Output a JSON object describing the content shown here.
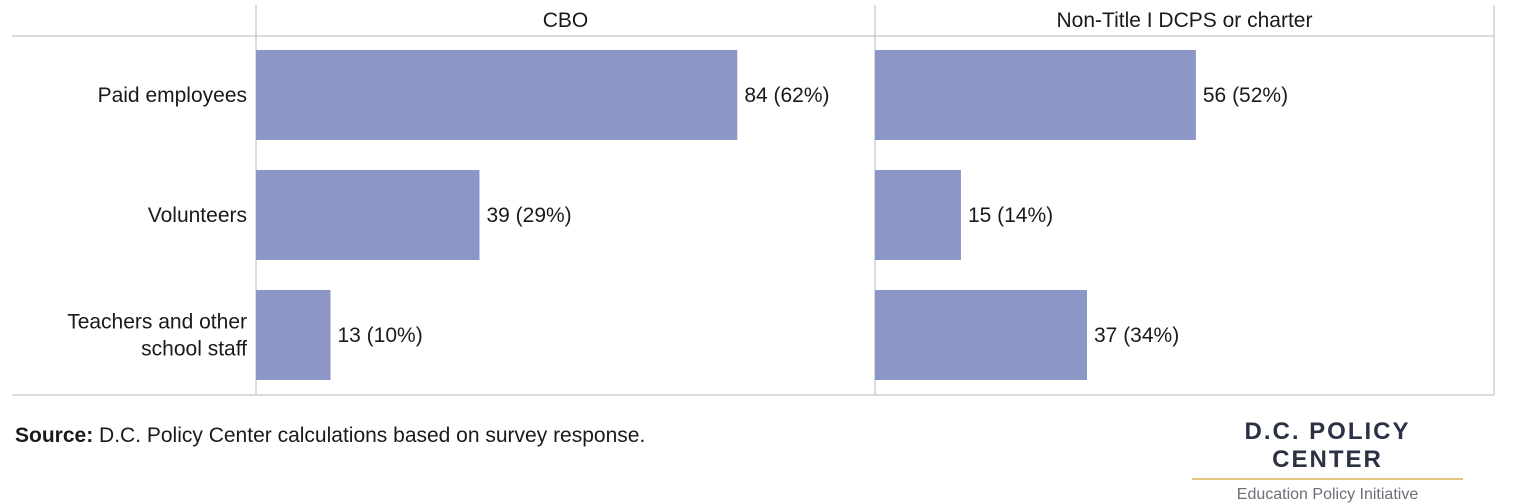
{
  "chart_data": {
    "type": "bar",
    "orientation": "horizontal",
    "categories": [
      "Paid employees",
      "Volunteers",
      "Teachers and other school staff"
    ],
    "category_lines": [
      [
        "Paid employees"
      ],
      [
        "Volunteers"
      ],
      [
        "Teachers and other",
        "school staff"
      ]
    ],
    "panels": [
      {
        "title": "CBO",
        "values": [
          84,
          39,
          13
        ],
        "labels": [
          "84 (62%)",
          "39 (29%)",
          "13 (10%)"
        ]
      },
      {
        "title": "Non-Title I DCPS or charter",
        "values": [
          56,
          15,
          37
        ],
        "labels": [
          "56 (52%)",
          "15 (14%)",
          "37 (34%)"
        ]
      }
    ],
    "xlim": [
      0,
      120
    ],
    "bar_color": "#8c97c8",
    "grid": false,
    "legend": "none"
  },
  "source": {
    "prefix": "Source:",
    "text": " D.C. Policy Center calculations based on survey response."
  },
  "logo": {
    "title": "D.C. POLICY CENTER",
    "subtitle": "Education Policy Initiative"
  }
}
